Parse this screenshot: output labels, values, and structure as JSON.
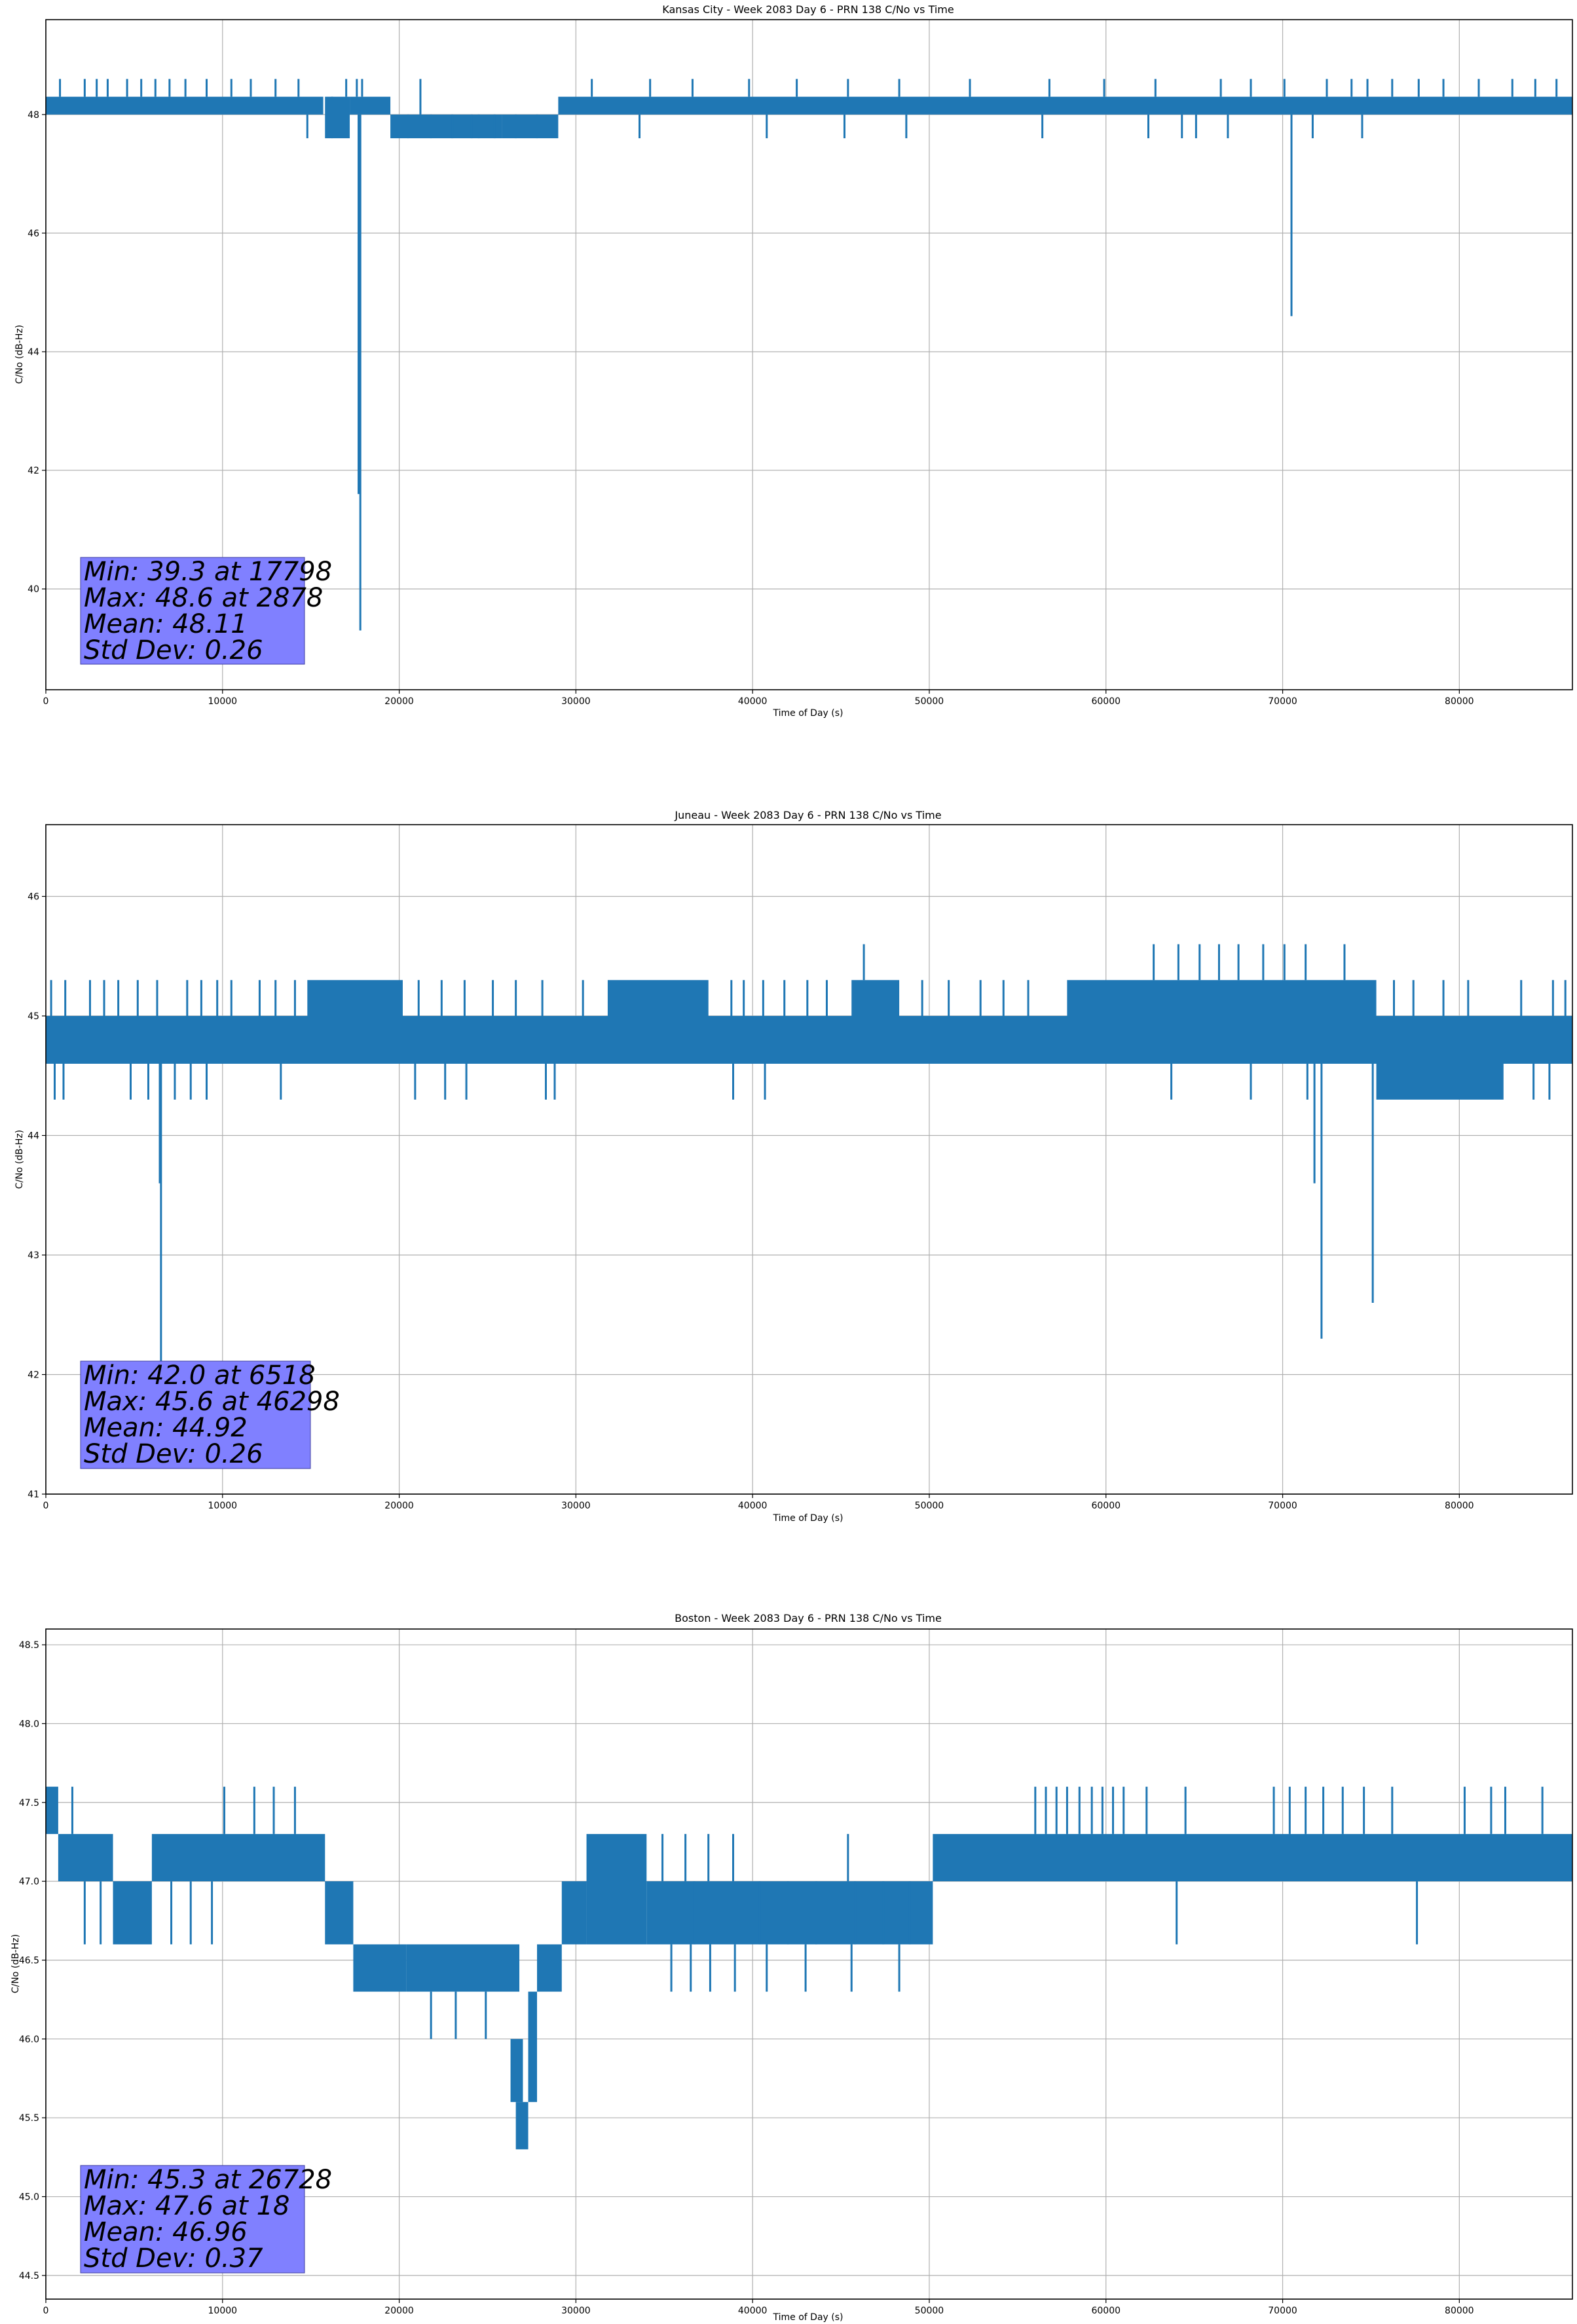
{
  "chart_data": [
    {
      "type": "line",
      "title": "Kansas City - Week 2083 Day 6 - PRN 138 C/No vs Time",
      "xlabel": "Time of Day (s)",
      "ylabel": "C/No (dB-Hz)",
      "xlim": [
        0,
        86400
      ],
      "ylim": [
        38.3,
        49.6
      ],
      "xticks": [
        0,
        10000,
        20000,
        30000,
        40000,
        50000,
        60000,
        70000,
        80000
      ],
      "yticks": [
        40,
        42,
        44,
        46,
        48
      ],
      "ytick_labels": [
        "40",
        "42",
        "44",
        "46",
        "48"
      ],
      "grid": true,
      "color": "#1f77b4",
      "series": [
        {
          "name": "C/No",
          "bands": [
            {
              "x0": 0,
              "x1": 15700,
              "y0": 48.0,
              "y1": 48.3
            },
            {
              "x0": 15800,
              "x1": 17200,
              "y0": 47.6,
              "y1": 48.3
            },
            {
              "x0": 17200,
              "x1": 19500,
              "y0": 48.0,
              "y1": 48.3
            },
            {
              "x0": 19500,
              "x1": 25800,
              "y0": 47.6,
              "y1": 48.0
            },
            {
              "x0": 25800,
              "x1": 29000,
              "y0": 47.6,
              "y1": 48.0
            },
            {
              "x0": 29000,
              "x1": 86400,
              "y0": 48.0,
              "y1": 48.3
            }
          ],
          "upper_spikes": {
            "y": 48.6,
            "x": [
              800,
              2200,
              2878,
              3500,
              4600,
              5400,
              6200,
              7000,
              7900,
              9100,
              10500,
              11600,
              13000,
              14300,
              17000,
              17600,
              17900,
              21200,
              30900,
              34200,
              36600,
              39800,
              42500,
              45400,
              48300,
              52300,
              56800,
              59900,
              62800,
              66500,
              68200,
              70100,
              72500,
              73900,
              74800,
              76200,
              77700,
              79100,
              81100,
              83000,
              84300,
              85500
            ]
          },
          "lower_spikes": {
            "y": 47.6,
            "x": [
              14800,
              16200,
              20500,
              21800,
              23000,
              24100,
              24500,
              25400,
              26600,
              27800,
              33600,
              40800,
              45200,
              48700,
              56400,
              62400,
              64300,
              65100,
              66900,
              71700,
              74500
            ]
          },
          "deep_spikes": [
            {
              "x": 17798,
              "y": 39.3
            },
            {
              "x": 17700,
              "y": 41.6
            },
            {
              "x": 70500,
              "y": 44.6
            }
          ]
        }
      ],
      "annotations": [
        "Min: 39.3 at 17798",
        "Max: 48.6 at 2878",
        "Mean: 48.11",
        "Std Dev: 0.26"
      ]
    },
    {
      "type": "line",
      "title": "Juneau - Week 2083 Day 6 - PRN 138 C/No vs Time",
      "xlabel": "Time of Day (s)",
      "ylabel": "C/No (dB-Hz)",
      "xlim": [
        0,
        86400
      ],
      "ylim": [
        41.0,
        46.6
      ],
      "xticks": [
        0,
        10000,
        20000,
        30000,
        40000,
        50000,
        60000,
        70000,
        80000
      ],
      "yticks": [
        41,
        42,
        43,
        44,
        45,
        46
      ],
      "ytick_labels": [
        "41",
        "42",
        "43",
        "44",
        "45",
        "46"
      ],
      "grid": true,
      "color": "#1f77b4",
      "series": [
        {
          "name": "C/No",
          "bands": [
            {
              "x0": 0,
              "x1": 86400,
              "y0": 44.6,
              "y1": 45.0
            },
            {
              "x0": 14800,
              "x1": 20200,
              "y0": 45.0,
              "y1": 45.3
            },
            {
              "x0": 31800,
              "x1": 37500,
              "y0": 45.0,
              "y1": 45.3
            },
            {
              "x0": 45600,
              "x1": 48300,
              "y0": 45.0,
              "y1": 45.3
            },
            {
              "x0": 57800,
              "x1": 75300,
              "y0": 45.0,
              "y1": 45.3
            },
            {
              "x0": 75300,
              "x1": 82500,
              "y0": 44.3,
              "y1": 44.6
            }
          ],
          "upper_spikes": {
            "y": 45.3,
            "x": [
              300,
              1100,
              2500,
              3300,
              4100,
              5200,
              6300,
              8000,
              8800,
              9700,
              10500,
              12100,
              13000,
              14100,
              21100,
              22400,
              23700,
              25300,
              26600,
              28100,
              30400,
              38800,
              39500,
              40600,
              41800,
              43100,
              44200,
              49600,
              51100,
              52900,
              54200,
              55600,
              76300,
              77400,
              79100,
              80500,
              83500,
              85300,
              86000
            ]
          },
          "top_spikes": {
            "y": 45.6,
            "x": [
              46298,
              62700,
              64100,
              65300,
              66400,
              67500,
              68900,
              70100,
              71300,
              73500
            ]
          },
          "lower_spikes": {
            "y": 44.3,
            "x": [
              500,
              1000,
              4800,
              5800,
              7300,
              8200,
              9100,
              13300,
              20900,
              22600,
              23800,
              28300,
              28800,
              38900,
              40700,
              63700,
              68200,
              71400,
              84200,
              85100
            ]
          },
          "deep_spikes": [
            {
              "x": 6518,
              "y": 42.0
            },
            {
              "x": 6450,
              "y": 43.6
            },
            {
              "x": 72200,
              "y": 42.3
            },
            {
              "x": 71800,
              "y": 43.6
            },
            {
              "x": 75100,
              "y": 42.6
            }
          ]
        }
      ],
      "annotations": [
        "Min: 42.0 at 6518",
        "Max: 45.6 at 46298",
        "Mean: 44.92",
        "Std Dev: 0.26"
      ]
    },
    {
      "type": "line",
      "title": "Boston - Week 2083 Day 6 - PRN 138 C/No vs Time",
      "xlabel": "Time of Day (s)",
      "ylabel": "C/No (dB-Hz)",
      "xlim": [
        0,
        86400
      ],
      "ylim": [
        44.35,
        48.6
      ],
      "xticks": [
        0,
        10000,
        20000,
        30000,
        40000,
        50000,
        60000,
        70000,
        80000
      ],
      "yticks": [
        44.5,
        45.0,
        45.5,
        46.0,
        46.5,
        47.0,
        47.5,
        48.0,
        48.5
      ],
      "ytick_labels": [
        "44.5",
        "45.0",
        "45.5",
        "46.0",
        "46.5",
        "47.0",
        "47.5",
        "48.0",
        "48.5"
      ],
      "grid": true,
      "color": "#1f77b4",
      "series": [
        {
          "name": "C/No",
          "bands": [
            {
              "x0": 0,
              "x1": 700,
              "y0": 47.3,
              "y1": 47.6
            },
            {
              "x0": 700,
              "x1": 3800,
              "y0": 47.0,
              "y1": 47.3
            },
            {
              "x0": 3800,
              "x1": 6000,
              "y0": 46.6,
              "y1": 47.0
            },
            {
              "x0": 6000,
              "x1": 15800,
              "y0": 47.0,
              "y1": 47.3
            },
            {
              "x0": 15800,
              "x1": 17400,
              "y0": 46.6,
              "y1": 47.0
            },
            {
              "x0": 17400,
              "x1": 20400,
              "y0": 46.3,
              "y1": 46.6
            },
            {
              "x0": 20400,
              "x1": 26800,
              "y0": 46.3,
              "y1": 46.6
            },
            {
              "x0": 26300,
              "x1": 27000,
              "y0": 45.6,
              "y1": 46.0
            },
            {
              "x0": 26600,
              "x1": 27300,
              "y0": 45.3,
              "y1": 45.6
            },
            {
              "x0": 27300,
              "x1": 27800,
              "y0": 45.6,
              "y1": 46.3
            },
            {
              "x0": 27800,
              "x1": 29200,
              "y0": 46.3,
              "y1": 46.6
            },
            {
              "x0": 29200,
              "x1": 30600,
              "y0": 46.6,
              "y1": 47.0
            },
            {
              "x0": 30600,
              "x1": 34000,
              "y0": 46.6,
              "y1": 47.3
            },
            {
              "x0": 34000,
              "x1": 50200,
              "y0": 46.6,
              "y1": 47.0
            },
            {
              "x0": 50200,
              "x1": 86400,
              "y0": 47.0,
              "y1": 47.3
            }
          ],
          "upper_spikes": {
            "y": 47.6,
            "x": [
              1500,
              10100,
              11800,
              12900,
              14100,
              56000,
              56600,
              57200,
              57800,
              58500,
              59200,
              59800,
              60400,
              61000,
              62300,
              64500,
              69500,
              70400,
              71300,
              72300,
              73400,
              74600,
              76200,
              80300,
              81800,
              82600,
              84700
            ]
          },
          "mid_spikes": {
            "y": 47.3,
            "x": [
              34900,
              36200,
              37500,
              38900,
              45400
            ]
          },
          "lower_spikes": {
            "y": 46.6,
            "x": [
              2200,
              3100,
              7100,
              8200,
              9400,
              36700,
              40400,
              42000,
              43600,
              45800,
              47400,
              48900,
              64000,
              77600
            ]
          },
          "dip_spikes": {
            "y": 46.3,
            "x": [
              35400,
              36500,
              37600,
              39000,
              40800,
              43000,
              45600,
              48300
            ]
          },
          "deep_spikes": [
            {
              "x": 21800,
              "y": 46.0
            },
            {
              "x": 23200,
              "y": 46.0
            },
            {
              "x": 24900,
              "y": 46.0
            },
            {
              "x": 26728,
              "y": 45.3
            }
          ]
        }
      ],
      "annotations": [
        "Min: 45.3 at 26728",
        "Max: 47.6 at 18",
        "Mean: 46.96",
        "Std Dev: 0.37"
      ]
    }
  ]
}
